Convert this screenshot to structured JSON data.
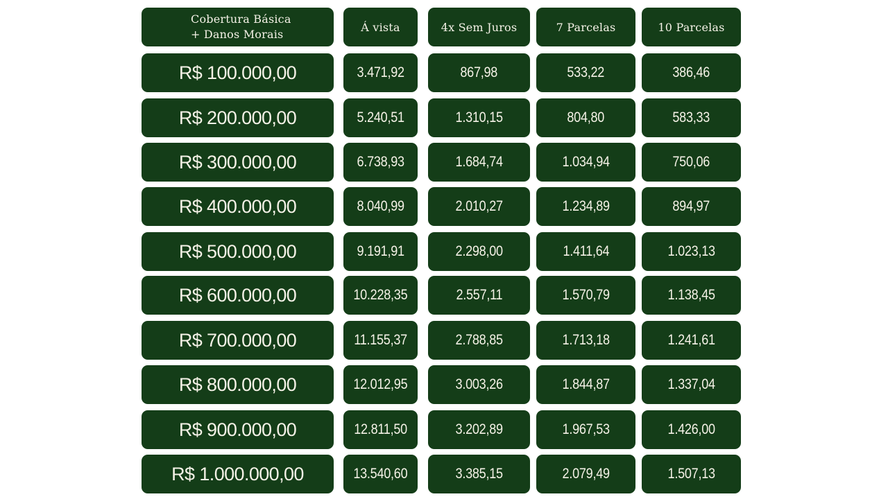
{
  "table": {
    "headers": {
      "coverage_line1": "Cobertura Básica",
      "coverage_line2": "+ Danos Morais",
      "avista": "Á vista",
      "sem_juros": "4x Sem Juros",
      "sete": "7 Parcelas",
      "dez": "10 Parcelas"
    },
    "rows": [
      {
        "coverage": "R$ 100.000,00",
        "avista": "3.471,92",
        "sem_juros": "867,98",
        "sete": "533,22",
        "dez": "386,46"
      },
      {
        "coverage": "R$ 200.000,00",
        "avista": "5.240,51",
        "sem_juros": "1.310,15",
        "sete": "804,80",
        "dez": "583,33"
      },
      {
        "coverage": "R$ 300.000,00",
        "avista": "6.738,93",
        "sem_juros": "1.684,74",
        "sete": "1.034,94",
        "dez": "750,06"
      },
      {
        "coverage": "R$ 400.000,00",
        "avista": "8.040,99",
        "sem_juros": "2.010,27",
        "sete": "1.234,89",
        "dez": "894,97"
      },
      {
        "coverage": "R$ 500.000,00",
        "avista": "9.191,91",
        "sem_juros": "2.298,00",
        "sete": "1.411,64",
        "dez": "1.023,13"
      },
      {
        "coverage": "R$ 600.000,00",
        "avista": "10.228,35",
        "sem_juros": "2.557,11",
        "sete": "1.570,79",
        "dez": "1.138,45"
      },
      {
        "coverage": "R$ 700.000,00",
        "avista": "11.155,37",
        "sem_juros": "2.788,85",
        "sete": "1.713,18",
        "dez": "1.241,61"
      },
      {
        "coverage": "R$ 800.000,00",
        "avista": "12.012,95",
        "sem_juros": "3.003,26",
        "sete": "1.844,87",
        "dez": "1.337,04"
      },
      {
        "coverage": "R$ 900.000,00",
        "avista": "12.811,50",
        "sem_juros": "3.202,89",
        "sete": "1.967,53",
        "dez": "1.426,00"
      },
      {
        "coverage": "R$ 1.000.000,00",
        "avista": "13.540,60",
        "sem_juros": "3.385,15",
        "sete": "2.079,49",
        "dez": "1.507,13"
      }
    ]
  },
  "colors": {
    "cell_background": "#143d18",
    "text": "#f4f1e6",
    "page_background": "#ffffff"
  }
}
